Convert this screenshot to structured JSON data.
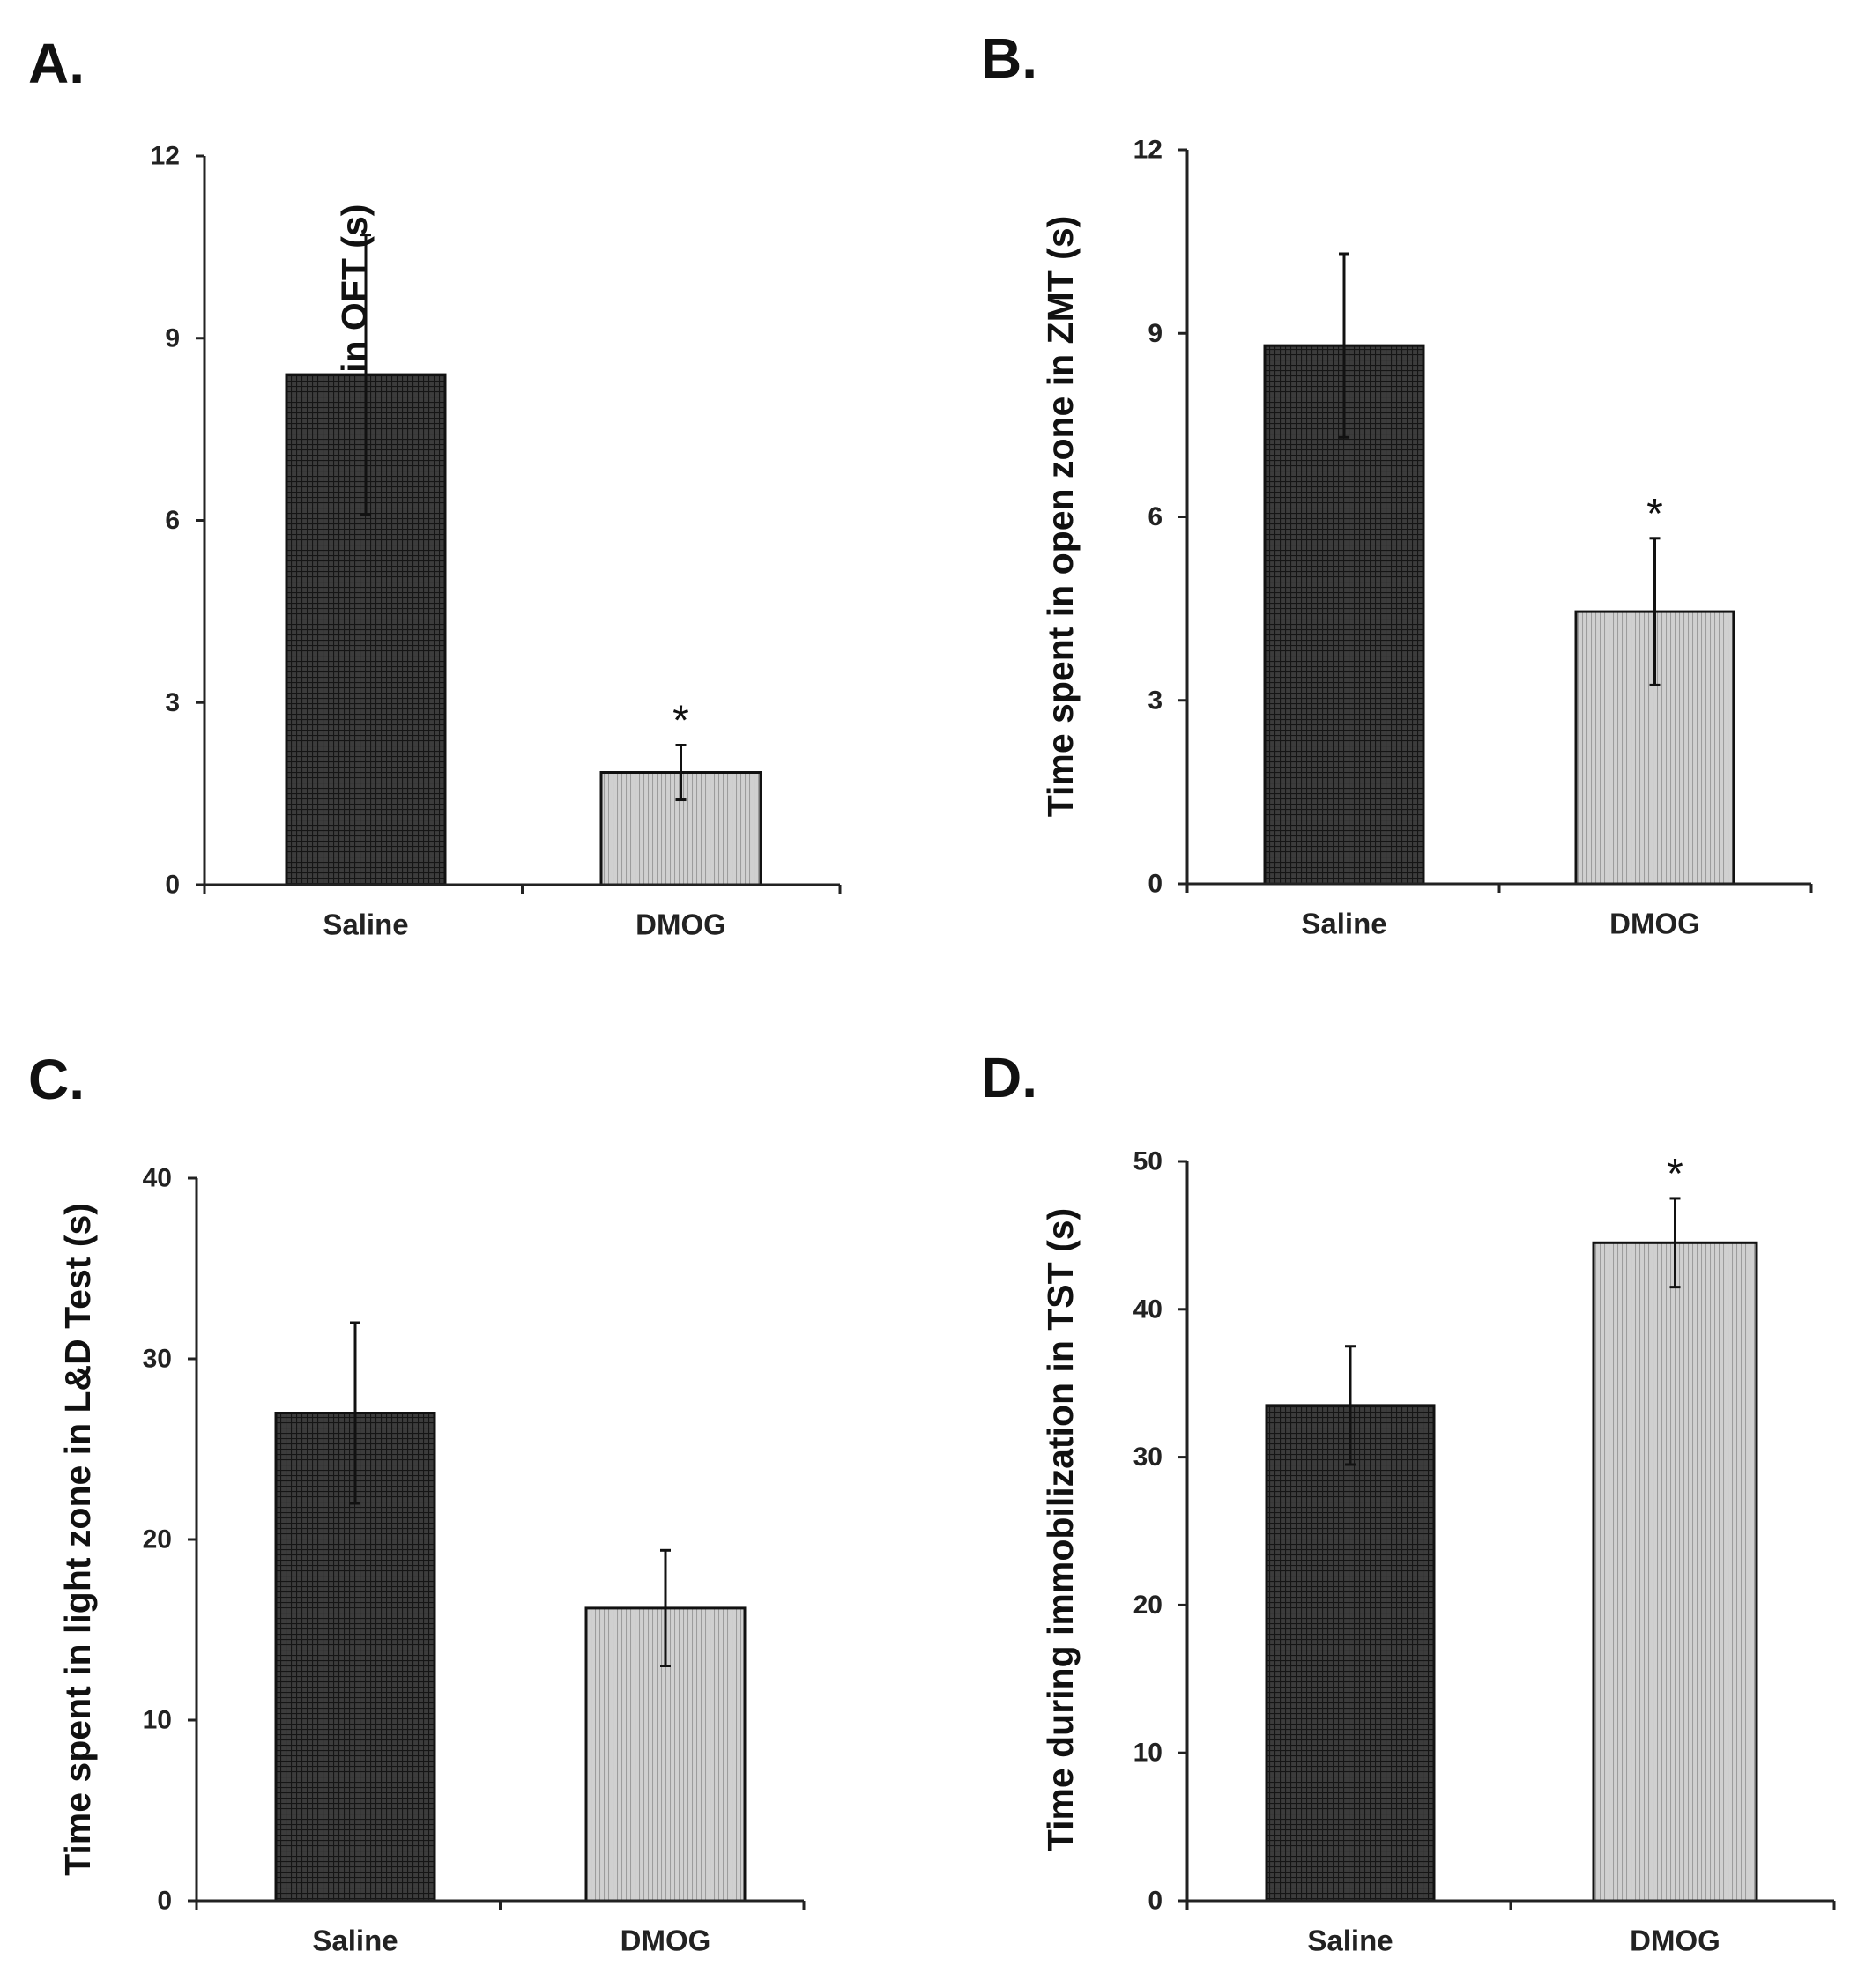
{
  "figure": {
    "colors": {
      "saline": "#3a3a3a",
      "dmog": "#c9c9c9",
      "axis": "#222222"
    },
    "chart_data": [
      {
        "type": "bar",
        "panel": "A.",
        "title": "",
        "xlabel": "",
        "ylabel": "Time spent in central zone in OFT (s)",
        "categories": [
          "Saline",
          "DMOG"
        ],
        "values": [
          8.4,
          1.85
        ],
        "errors": [
          2.3,
          0.45
        ],
        "significance": [
          "",
          "*"
        ],
        "ylim": [
          0,
          12
        ],
        "yticks": [
          "0",
          "3",
          "6",
          "9",
          "12"
        ],
        "grid": false
      },
      {
        "type": "bar",
        "panel": "B.",
        "title": "",
        "xlabel": "",
        "ylabel": "Time spent in open zone in ZMT (s)",
        "categories": [
          "Saline",
          "DMOG"
        ],
        "values": [
          8.8,
          4.45
        ],
        "errors": [
          1.5,
          1.2
        ],
        "significance": [
          "",
          "*"
        ],
        "ylim": [
          0,
          12
        ],
        "yticks": [
          "0",
          "3",
          "6",
          "9",
          "12"
        ],
        "grid": false
      },
      {
        "type": "bar",
        "panel": "C.",
        "title": "",
        "xlabel": "",
        "ylabel": "Time spent in light zone in L&D Test (s)",
        "categories": [
          "Saline",
          "DMOG"
        ],
        "values": [
          27,
          16.2
        ],
        "errors": [
          5,
          3.2
        ],
        "significance": [
          "",
          ""
        ],
        "ylim": [
          0,
          40
        ],
        "yticks": [
          "0",
          "10",
          "20",
          "30",
          "40"
        ],
        "grid": false
      },
      {
        "type": "bar",
        "panel": "D.",
        "title": "",
        "xlabel": "",
        "ylabel": "Time during immobilization in TST (s)",
        "categories": [
          "Saline",
          "DMOG"
        ],
        "values": [
          33.5,
          44.5
        ],
        "errors": [
          4,
          3
        ],
        "significance": [
          "",
          "*"
        ],
        "ylim": [
          0,
          50
        ],
        "yticks": [
          "0",
          "10",
          "20",
          "30",
          "40",
          "50"
        ],
        "grid": false
      }
    ]
  }
}
